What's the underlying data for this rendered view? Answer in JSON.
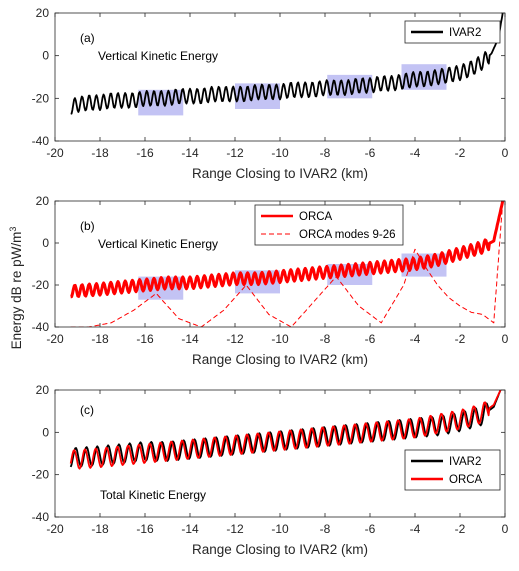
{
  "figure": {
    "y_axis_label_main": "Energy dB re pW/m",
    "y_axis_label_sup": "3",
    "x_axis_label": "Range Closing to IVAR2 (km)"
  },
  "chart_data": [
    {
      "type": "line",
      "panel_label": "(a)",
      "annotation": "Vertical Kinetic Energy",
      "xlabel": "Range Closing to IVAR2 (km)",
      "ylabel": "Energy dB re pW/m3",
      "xlim": [
        -20,
        0
      ],
      "ylim": [
        -40,
        20
      ],
      "xticks": [
        "-20",
        "-18",
        "-16",
        "-14",
        "-12",
        "-10",
        "-8",
        "-6",
        "-4",
        "-2",
        "0"
      ],
      "yticks": [
        "-40",
        "-20",
        "0",
        "20"
      ],
      "legend_position": "top-right",
      "highlight_regions": [
        {
          "x": [
            -16.3,
            -14.3
          ],
          "y": [
            -28,
            -16
          ]
        },
        {
          "x": [
            -12.0,
            -10.0
          ],
          "y": [
            -25,
            -13
          ]
        },
        {
          "x": [
            -7.9,
            -5.9
          ],
          "y": [
            -20,
            -9
          ]
        },
        {
          "x": [
            -4.6,
            -2.6
          ],
          "y": [
            -16,
            -4
          ]
        }
      ],
      "series": [
        {
          "name": "IVAR2",
          "color": "#000000",
          "style": "solid",
          "x": [
            -19.3,
            -19.0,
            -18.5,
            -18.0,
            -17.5,
            -17.0,
            -16.5,
            -16.0,
            -15.5,
            -15.0,
            -14.5,
            -14.0,
            -13.5,
            -13.0,
            -12.5,
            -12.0,
            -11.5,
            -11.0,
            -10.5,
            -10.0,
            -9.5,
            -9.0,
            -8.5,
            -8.0,
            -7.5,
            -7.0,
            -6.5,
            -6.0,
            -5.5,
            -5.0,
            -4.5,
            -4.0,
            -3.5,
            -3.0,
            -2.5,
            -2.0,
            -1.5,
            -1.0,
            -0.6,
            -0.3,
            -0.1
          ],
          "y": [
            -24,
            -23,
            -22,
            -22,
            -21,
            -21,
            -21,
            -20,
            -20,
            -20,
            -19,
            -19,
            -19,
            -18,
            -18,
            -18,
            -18,
            -17,
            -17,
            -17,
            -16,
            -16,
            -16,
            -15,
            -15,
            -15,
            -14,
            -14,
            -13,
            -13,
            -12,
            -11,
            -11,
            -10,
            -9,
            -8,
            -6,
            -3,
            1,
            8,
            20
          ]
        }
      ]
    },
    {
      "type": "line",
      "panel_label": "(b)",
      "annotation": "Vertical Kinetic Energy",
      "xlabel": "Range Closing to IVAR2 (km)",
      "ylabel": "Energy dB re pW/m3",
      "xlim": [
        -20,
        0
      ],
      "ylim": [
        -40,
        20
      ],
      "xticks": [
        "-20",
        "-18",
        "-16",
        "-14",
        "-12",
        "-10",
        "-8",
        "-6",
        "-4",
        "-2",
        "0"
      ],
      "yticks": [
        "-40",
        "-20",
        "0",
        "20"
      ],
      "legend_position": "top-center",
      "highlight_regions": [
        {
          "x": [
            -16.3,
            -14.3
          ],
          "y": [
            -27,
            -16
          ]
        },
        {
          "x": [
            -12.0,
            -10.0
          ],
          "y": [
            -24,
            -13
          ]
        },
        {
          "x": [
            -7.9,
            -5.9
          ],
          "y": [
            -20,
            -10
          ]
        },
        {
          "x": [
            -4.6,
            -2.6
          ],
          "y": [
            -16,
            -5
          ]
        }
      ],
      "series": [
        {
          "name": "ORCA",
          "color": "#ff0000",
          "style": "solid",
          "x": [
            -19.3,
            -18.0,
            -17.0,
            -16.0,
            -15.0,
            -14.0,
            -13.0,
            -12.0,
            -11.0,
            -10.0,
            -9.0,
            -8.0,
            -7.0,
            -6.0,
            -5.0,
            -4.0,
            -3.0,
            -2.0,
            -1.0,
            -0.5,
            -0.1
          ],
          "y": [
            -23,
            -22,
            -21,
            -20,
            -19,
            -19,
            -18,
            -17,
            -17,
            -16,
            -15,
            -14,
            -13,
            -12,
            -11,
            -10,
            -8,
            -5,
            -2,
            1,
            20
          ]
        },
        {
          "name": "ORCA modes 9-26",
          "color": "#ff0000",
          "style": "dashed",
          "x": [
            -19.3,
            -18.5,
            -17.5,
            -16.5,
            -15.5,
            -14.5,
            -13.5,
            -12.5,
            -11.5,
            -10.5,
            -9.5,
            -8.5,
            -7.5,
            -6.5,
            -5.5,
            -4.5,
            -4.0,
            -3.5,
            -3.0,
            -2.5,
            -2.0,
            -1.5,
            -1.0,
            -0.5,
            -0.1
          ],
          "y": [
            -40,
            -40,
            -38,
            -32,
            -24,
            -36,
            -40,
            -32,
            -20,
            -34,
            -40,
            -28,
            -16,
            -30,
            -38,
            -20,
            -3,
            -12,
            -20,
            -26,
            -30,
            -33,
            -34,
            -38,
            20
          ]
        }
      ]
    },
    {
      "type": "line",
      "panel_label": "(c)",
      "annotation": "Total Kinetic Energy",
      "xlabel": "Range Closing to IVAR2 (km)",
      "ylabel": "Energy dB re pW/m3",
      "xlim": [
        -20,
        0
      ],
      "ylim": [
        -40,
        20
      ],
      "xticks": [
        "-20",
        "-18",
        "-16",
        "-14",
        "-12",
        "-10",
        "-8",
        "-6",
        "-4",
        "-2",
        "0"
      ],
      "yticks": [
        "-40",
        "-20",
        "0",
        "20"
      ],
      "legend_position": "bottom-right",
      "series": [
        {
          "name": "IVAR2",
          "color": "#000000",
          "style": "solid",
          "x": [
            -19.3,
            -18.0,
            -17.0,
            -16.0,
            -15.0,
            -14.0,
            -13.0,
            -12.0,
            -11.0,
            -10.0,
            -9.0,
            -8.0,
            -7.0,
            -6.0,
            -5.0,
            -4.0,
            -3.0,
            -2.0,
            -1.0,
            -0.5,
            -0.2
          ],
          "y": [
            -12,
            -11,
            -10,
            -9,
            -9,
            -8,
            -7,
            -6,
            -5,
            -4,
            -3,
            -2,
            -1,
            0,
            1,
            2,
            3,
            5,
            8,
            12,
            20
          ]
        },
        {
          "name": "ORCA",
          "color": "#ff0000",
          "style": "solid",
          "x": [
            -19.3,
            -18.0,
            -17.0,
            -16.0,
            -15.0,
            -14.0,
            -13.0,
            -12.0,
            -11.0,
            -10.0,
            -9.0,
            -8.0,
            -7.0,
            -6.0,
            -5.0,
            -4.0,
            -3.0,
            -2.0,
            -1.0,
            -0.5,
            -0.2
          ],
          "y": [
            -13,
            -12,
            -11,
            -10,
            -9,
            -8,
            -7,
            -6,
            -5,
            -4,
            -3,
            -2,
            -1,
            0,
            1,
            2,
            4,
            6,
            9,
            13,
            20
          ]
        }
      ]
    }
  ]
}
